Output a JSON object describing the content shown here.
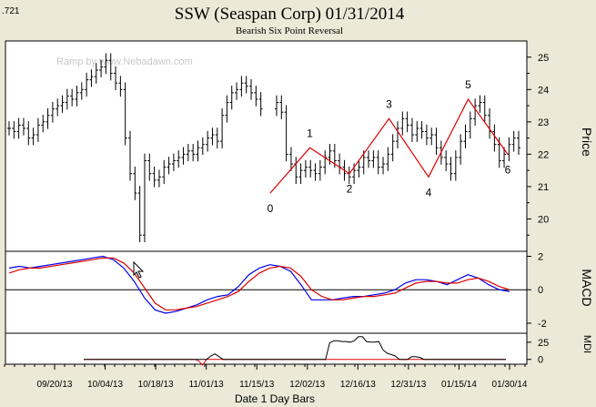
{
  "window": {
    "corner_value": ".721"
  },
  "chart_data": {
    "type": "line",
    "title": "SSW (Seaspan Corp)  01/31/2014",
    "subtitle": "Bearish Six Point Reversal",
    "watermark": "Ramp by www.Nebadawn.com",
    "xlabel": "Date  1  Day Bars",
    "x_ticks": [
      "09/20/13",
      "10/04/13",
      "10/18/13",
      "11/01/13",
      "11/15/13",
      "12/02/13",
      "12/16/13",
      "12/31/13",
      "01/15/14",
      "01/30/14"
    ],
    "price_panel": {
      "ylabel": "Price",
      "ylim": [
        19,
        25.5
      ],
      "y_ticks": [
        20,
        21,
        22,
        23,
        24,
        25
      ],
      "pattern_points": [
        {
          "label": "0",
          "price": 20.8
        },
        {
          "label": "1",
          "price": 22.2
        },
        {
          "label": "2",
          "price": 21.4
        },
        {
          "label": "3",
          "price": 23.1
        },
        {
          "label": "4",
          "price": 21.3
        },
        {
          "label": "5",
          "price": 23.7
        },
        {
          "label": "6",
          "price": 22.0
        }
      ],
      "pattern_color": "#dd0000",
      "bar_color": "#000000",
      "closes": [
        22.8,
        22.7,
        22.9,
        22.8,
        22.5,
        22.6,
        22.9,
        23.0,
        23.2,
        23.4,
        23.5,
        23.6,
        23.8,
        23.7,
        23.9,
        24.0,
        24.3,
        24.4,
        24.6,
        24.7,
        24.9,
        24.5,
        24.2,
        24.0,
        22.5,
        21.4,
        20.8,
        19.5,
        21.8,
        21.4,
        21.2,
        21.3,
        21.6,
        21.7,
        21.8,
        21.9,
        22.0,
        22.1,
        22.0,
        22.2,
        22.3,
        22.5,
        22.6,
        22.4,
        23.2,
        23.6,
        23.9,
        24.0,
        24.2,
        24.1,
        23.9,
        23.7,
        23.4,
        23.6,
        23.3,
        22.0,
        21.7,
        21.3,
        21.5,
        21.6,
        21.5,
        21.4,
        21.6,
        21.9,
        22.1,
        21.8,
        21.6,
        21.4,
        21.3,
        21.5,
        21.6,
        21.9,
        21.8,
        21.9,
        21.6,
        21.7,
        22.0,
        22.4,
        22.8,
        23.1,
        22.9,
        22.6,
        22.8,
        22.7,
        22.5,
        22.6,
        22.2,
        21.9,
        21.7,
        21.4,
        21.9,
        22.4,
        22.7,
        23.1,
        23.5,
        23.6,
        23.2,
        22.7,
        22.3,
        21.8,
        22.0,
        22.3,
        22.5,
        22.2
      ],
      "gap_after_index": 52
    },
    "macd_panel": {
      "ylabel": "MACD",
      "ylim": [
        -2.6,
        2.3
      ],
      "y_ticks": [
        2,
        0,
        -2
      ],
      "series": [
        {
          "color": "#0000ee",
          "values": [
            1.3,
            1.4,
            1.3,
            1.4,
            1.5,
            1.6,
            1.7,
            1.8,
            1.9,
            2.0,
            1.8,
            1.3,
            0.5,
            -0.5,
            -1.2,
            -1.4,
            -1.3,
            -1.1,
            -0.9,
            -0.6,
            -0.4,
            -0.3,
            0.2,
            0.9,
            1.3,
            1.5,
            1.4,
            1.1,
            0.3,
            -0.6,
            -0.6,
            -0.6,
            -0.5,
            -0.4,
            -0.4,
            -0.3,
            -0.2,
            0.0,
            0.4,
            0.6,
            0.6,
            0.5,
            0.3,
            0.6,
            0.9,
            0.7,
            0.3,
            0.0,
            -0.1
          ]
        },
        {
          "color": "#dd0000",
          "values": [
            1.0,
            1.2,
            1.3,
            1.3,
            1.4,
            1.5,
            1.6,
            1.7,
            1.8,
            1.9,
            1.9,
            1.6,
            1.0,
            0.1,
            -0.8,
            -1.2,
            -1.2,
            -1.1,
            -1.0,
            -0.8,
            -0.6,
            -0.4,
            -0.1,
            0.5,
            1.0,
            1.3,
            1.4,
            1.3,
            0.8,
            0.0,
            -0.4,
            -0.6,
            -0.6,
            -0.5,
            -0.4,
            -0.4,
            -0.3,
            -0.2,
            0.1,
            0.4,
            0.5,
            0.5,
            0.4,
            0.4,
            0.6,
            0.7,
            0.5,
            0.2,
            0.0
          ]
        }
      ]
    },
    "mdi_panel": {
      "ylabel": "MDI",
      "y_ticks": [
        25,
        0
      ],
      "ylim": [
        -3,
        42
      ],
      "series": [
        {
          "color": "#dd0000",
          "values": [
            0,
            0,
            0,
            0,
            0,
            0,
            0,
            0,
            0,
            0,
            0,
            0,
            0,
            0,
            0,
            0,
            0,
            0,
            0,
            0,
            0,
            0,
            0,
            0,
            0,
            0,
            0,
            0,
            -2,
            -8,
            0,
            0,
            0,
            0,
            0,
            0,
            0,
            0,
            0,
            0,
            0,
            0,
            0,
            0,
            0,
            0,
            0,
            0,
            0,
            0,
            0,
            0,
            0,
            0,
            0,
            0,
            0,
            0,
            0,
            0,
            0,
            0,
            0,
            0,
            0,
            0,
            0,
            0,
            0,
            0,
            0,
            0,
            0,
            0,
            0,
            0,
            0,
            0,
            0,
            0,
            0,
            0,
            0,
            0,
            0,
            0,
            0,
            0,
            0,
            0,
            0,
            0,
            0,
            0,
            0,
            0,
            0,
            0,
            0,
            0,
            0,
            0,
            0,
            0
          ]
        },
        {
          "color": "#000000",
          "values": [
            0,
            0,
            0,
            0,
            0,
            0,
            0,
            0,
            0,
            0,
            0,
            0,
            0,
            0,
            0,
            0,
            0,
            0,
            0,
            0,
            0,
            0,
            0,
            0,
            0,
            0,
            0,
            0,
            0,
            0,
            0,
            5,
            8,
            4,
            0,
            0,
            0,
            0,
            0,
            0,
            0,
            0,
            0,
            0,
            0,
            0,
            0,
            0,
            0,
            0,
            0,
            0,
            0,
            0,
            0,
            0,
            0,
            0,
            0,
            0,
            24,
            27,
            27,
            26,
            26,
            25,
            27,
            33,
            33,
            26,
            25,
            25,
            26,
            14,
            9,
            7,
            5,
            0,
            0,
            0,
            4,
            4,
            3,
            0,
            0,
            0,
            0,
            0,
            0,
            0,
            0,
            0,
            0,
            0,
            0,
            0,
            0,
            0,
            0,
            0,
            0,
            0,
            0,
            0
          ]
        }
      ]
    }
  }
}
